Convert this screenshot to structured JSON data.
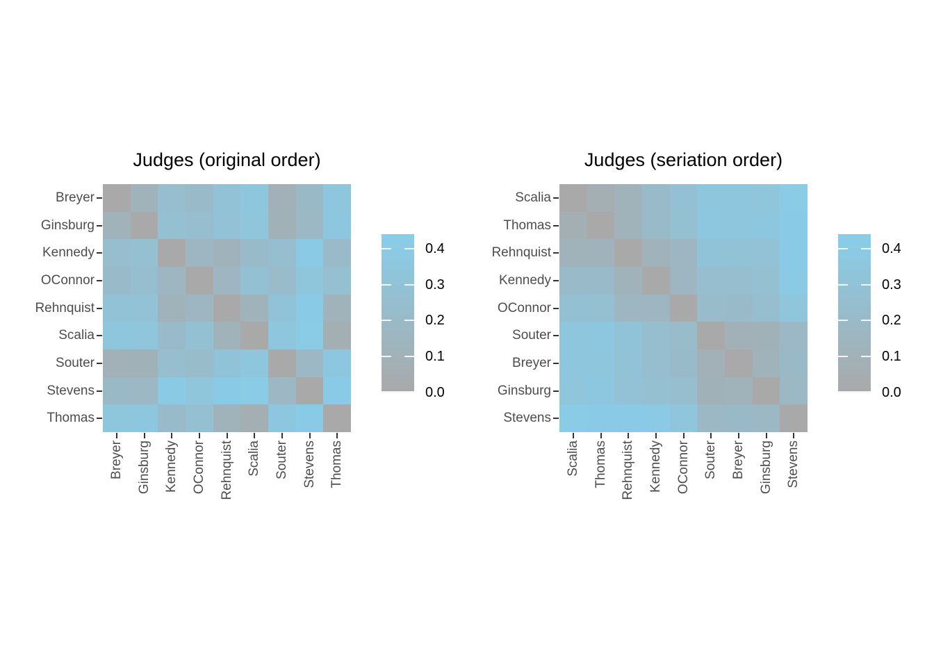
{
  "figure": {
    "background": "#FFFFFF",
    "title_color": "#000000",
    "axis_label_color": "#4D4D4D",
    "tick_mark_color": "#333333"
  },
  "chart_data": [
    {
      "type": "heatmap",
      "title": "Judges (original order)",
      "x_categories": [
        "Breyer",
        "Ginsburg",
        "Kennedy",
        "OConnor",
        "Rehnquist",
        "Scalia",
        "Souter",
        "Stevens",
        "Thomas"
      ],
      "y_categories": [
        "Breyer",
        "Ginsburg",
        "Kennedy",
        "OConnor",
        "Rehnquist",
        "Scalia",
        "Souter",
        "Stevens",
        "Thomas"
      ],
      "matrix": [
        [
          0.0,
          0.12,
          0.25,
          0.21,
          0.3,
          0.35,
          0.09,
          0.19,
          0.35
        ],
        [
          0.12,
          0.0,
          0.27,
          0.25,
          0.29,
          0.34,
          0.1,
          0.18,
          0.36
        ],
        [
          0.25,
          0.27,
          0.0,
          0.16,
          0.12,
          0.21,
          0.25,
          0.39,
          0.21
        ],
        [
          0.21,
          0.25,
          0.16,
          0.0,
          0.16,
          0.28,
          0.22,
          0.34,
          0.27
        ],
        [
          0.3,
          0.29,
          0.12,
          0.16,
          0.0,
          0.12,
          0.31,
          0.41,
          0.12
        ],
        [
          0.35,
          0.34,
          0.21,
          0.28,
          0.12,
          0.0,
          0.35,
          0.4,
          0.07
        ],
        [
          0.09,
          0.1,
          0.25,
          0.22,
          0.31,
          0.35,
          0.0,
          0.18,
          0.36
        ],
        [
          0.19,
          0.18,
          0.39,
          0.34,
          0.41,
          0.4,
          0.18,
          0.0,
          0.41
        ],
        [
          0.35,
          0.36,
          0.21,
          0.27,
          0.12,
          0.07,
          0.36,
          0.41,
          0.0
        ]
      ],
      "grid": false,
      "legend_position": "right",
      "colorbar": {
        "tick_labels": [
          "0.4",
          "0.3",
          "0.2",
          "0.1",
          "0.0"
        ],
        "tick_values": [
          0.4,
          0.3,
          0.2,
          0.1,
          0.0
        ],
        "min": 0.0,
        "max": 0.44,
        "low_color": "#A9A9A9",
        "high_color": "#87CEEB"
      }
    },
    {
      "type": "heatmap",
      "title": "Judges (seriation order)",
      "x_categories": [
        "Scalia",
        "Thomas",
        "Rehnquist",
        "Kennedy",
        "OConnor",
        "Souter",
        "Breyer",
        "Ginsburg",
        "Stevens"
      ],
      "y_categories": [
        "Scalia",
        "Thomas",
        "Rehnquist",
        "Kennedy",
        "OConnor",
        "Souter",
        "Breyer",
        "Ginsburg",
        "Stevens"
      ],
      "matrix": [
        [
          0.0,
          0.07,
          0.12,
          0.21,
          0.28,
          0.35,
          0.35,
          0.34,
          0.4
        ],
        [
          0.07,
          0.0,
          0.12,
          0.21,
          0.27,
          0.36,
          0.35,
          0.36,
          0.41
        ],
        [
          0.12,
          0.12,
          0.0,
          0.12,
          0.16,
          0.31,
          0.3,
          0.29,
          0.41
        ],
        [
          0.21,
          0.21,
          0.12,
          0.0,
          0.16,
          0.25,
          0.25,
          0.27,
          0.39
        ],
        [
          0.28,
          0.27,
          0.16,
          0.16,
          0.0,
          0.22,
          0.21,
          0.25,
          0.34
        ],
        [
          0.35,
          0.36,
          0.31,
          0.25,
          0.22,
          0.0,
          0.09,
          0.1,
          0.18
        ],
        [
          0.35,
          0.35,
          0.3,
          0.25,
          0.21,
          0.09,
          0.0,
          0.12,
          0.19
        ],
        [
          0.34,
          0.36,
          0.29,
          0.27,
          0.25,
          0.1,
          0.12,
          0.0,
          0.18
        ],
        [
          0.4,
          0.41,
          0.41,
          0.39,
          0.34,
          0.18,
          0.19,
          0.18,
          0.0
        ]
      ],
      "grid": false,
      "legend_position": "right",
      "colorbar": {
        "tick_labels": [
          "0.4",
          "0.3",
          "0.2",
          "0.1",
          "0.0"
        ],
        "tick_values": [
          0.4,
          0.3,
          0.2,
          0.1,
          0.0
        ],
        "min": 0.0,
        "max": 0.44,
        "low_color": "#A9A9A9",
        "high_color": "#87CEEB"
      }
    }
  ]
}
